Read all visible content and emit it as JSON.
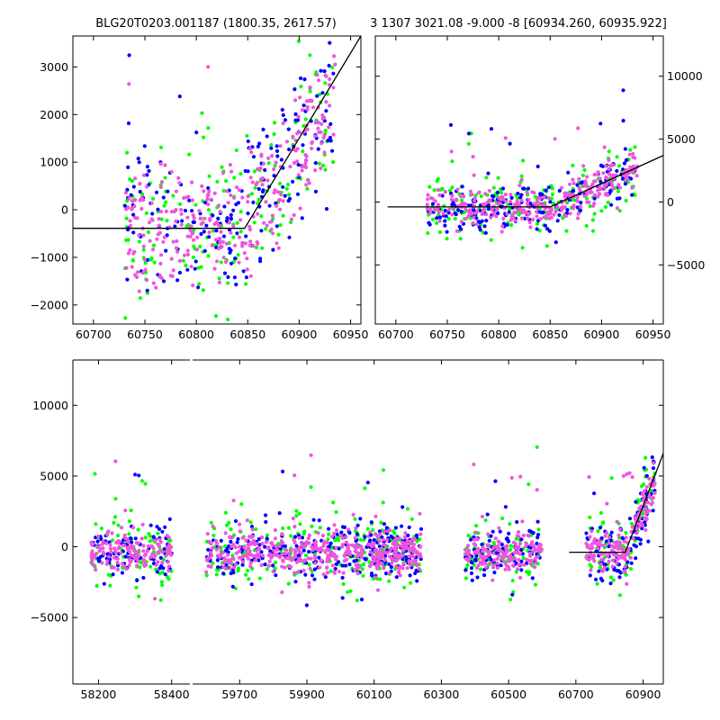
{
  "titles": {
    "left": "BLG20T0203.001187 (1800.35, 2617.57)",
    "right": "3 1307 3021.08 -9.000 -8 [60934.260, 60935.922]"
  },
  "colors": {
    "series_g": "#00ff00",
    "series_b": "#0000ff",
    "series_m": "#ee55dd",
    "model": "#000000"
  },
  "chart_data": [
    {
      "type": "scatter",
      "panel": "top-left",
      "xlim": [
        60680,
        60960
      ],
      "ylim": [
        -2400,
        3650
      ],
      "xticks": [
        60700,
        60750,
        60800,
        60850,
        60900,
        60950
      ],
      "yticks": [
        -2000,
        -1000,
        0,
        1000,
        2000,
        3000
      ],
      "ytick_labels": [
        "−2000",
        "−1000",
        "0",
        "1000",
        "2000",
        "3000"
      ],
      "yaxis_side": "left",
      "data_window": [
        60730,
        60935
      ],
      "model_line": {
        "x": [
          60680,
          60847,
          60960
        ],
        "y": [
          -390,
          -390,
          3650
        ]
      },
      "series": [
        {
          "color": "#00ff00",
          "scatter": 900,
          "n": 170
        },
        {
          "color": "#0000ff",
          "scatter": 800,
          "n": 200
        },
        {
          "color": "#ee55dd",
          "scatter": 650,
          "n": 300
        }
      ]
    },
    {
      "type": "scatter",
      "panel": "top-right",
      "xlim": [
        60680,
        60960
      ],
      "ylim": [
        -9700,
        13200
      ],
      "xticks": [
        60700,
        60750,
        60800,
        60850,
        60900,
        60950
      ],
      "yticks": [
        -5000,
        0,
        5000,
        10000
      ],
      "ytick_labels": [
        "−5000",
        "0",
        "5000",
        "10000"
      ],
      "yaxis_side": "right",
      "data_window": [
        60730,
        60935
      ],
      "model_line": {
        "x": [
          60692,
          60850,
          60960
        ],
        "y": [
          -390,
          -390,
          3700
        ]
      },
      "series": [
        {
          "color": "#00ff00",
          "scatter": 1300,
          "n": 170
        },
        {
          "color": "#0000ff",
          "scatter": 1000,
          "n": 200
        },
        {
          "color": "#ee55dd",
          "scatter": 700,
          "n": 300
        }
      ]
    },
    {
      "type": "scatter",
      "panel": "bottom",
      "ylim": [
        -9700,
        13200
      ],
      "yticks": [
        -5000,
        0,
        5000,
        10000
      ],
      "ytick_labels": [
        "−5000",
        "0",
        "5000",
        "10000"
      ],
      "segments": [
        {
          "xlim": [
            58130,
            58450
          ],
          "xticks": [
            58200,
            58400
          ],
          "data_window": [
            58180,
            58400
          ]
        },
        {
          "xlim": [
            59560,
            60960
          ],
          "xticks": [
            59700,
            59900,
            60100,
            60300,
            60500,
            60700,
            60900
          ],
          "data_windows": [
            [
              59600,
              59860
            ],
            [
              59860,
              60090
            ],
            [
              60090,
              60240
            ],
            [
              60370,
              60600
            ],
            [
              60730,
              60935
            ]
          ]
        }
      ],
      "model_line": {
        "x": [
          60680,
          60847,
          60960
        ],
        "y": [
          -390,
          -390,
          6600
        ]
      },
      "series": [
        {
          "color": "#00ff00",
          "scatter": 1300,
          "n": 340
        },
        {
          "color": "#0000ff",
          "scatter": 1000,
          "n": 400
        },
        {
          "color": "#ee55dd",
          "scatter": 700,
          "n": 650
        }
      ]
    }
  ]
}
